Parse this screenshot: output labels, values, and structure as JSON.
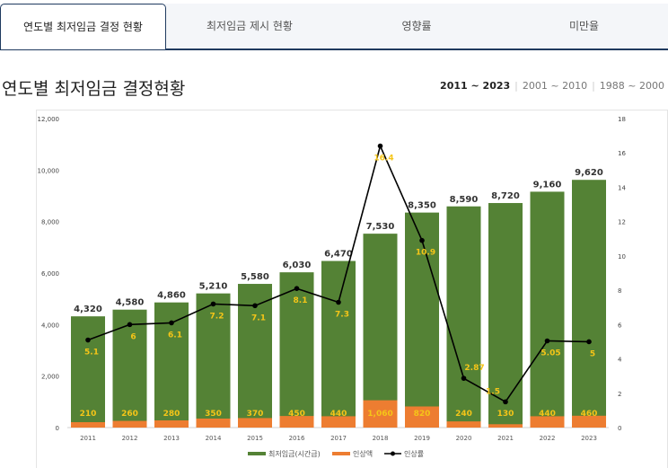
{
  "tabs": [
    {
      "label": "연도별 최저임금 결정 현황",
      "active": true
    },
    {
      "label": "최저임금 제시 현황"
    },
    {
      "label": "영향률"
    },
    {
      "label": "미만율"
    }
  ],
  "title": "연도별 최저임금 결정현황",
  "ranges": [
    {
      "label": "2011 ~ 2023",
      "selected": true
    },
    {
      "label": "2001 ~ 2010"
    },
    {
      "label": "1988 ~ 2000"
    }
  ],
  "chart_data": {
    "type": "bar",
    "categories": [
      "2011",
      "2012",
      "2013",
      "2014",
      "2015",
      "2016",
      "2017",
      "2018",
      "2019",
      "2020",
      "2021",
      "2022",
      "2023"
    ],
    "series": [
      {
        "name": "최저임금(시간급)",
        "type": "bar",
        "axis": "left",
        "color": "#548235",
        "values": [
          4320,
          4580,
          4860,
          5210,
          5580,
          6030,
          6470,
          7530,
          8350,
          8590,
          8720,
          9160,
          9620
        ]
      },
      {
        "name": "인상액",
        "type": "bar",
        "axis": "left",
        "color": "#ed7d31",
        "values": [
          210,
          260,
          280,
          350,
          370,
          450,
          440,
          1060,
          820,
          240,
          130,
          440,
          460
        ]
      },
      {
        "name": "인상률",
        "type": "line",
        "axis": "right",
        "color": "#000000",
        "values": [
          5.1,
          6,
          6.1,
          7.2,
          7.1,
          8.1,
          7.3,
          16.4,
          10.9,
          2.87,
          1.5,
          5.05,
          5
        ]
      }
    ],
    "ylim": [
      0,
      12000
    ],
    "yticks": [
      "0",
      "2,000",
      "4,000",
      "6,000",
      "8,000",
      "10,000",
      "12,000"
    ],
    "y2lim": [
      0,
      18
    ],
    "y2ticks": [
      "0",
      "2",
      "4",
      "6",
      "8",
      "10",
      "12",
      "14",
      "16",
      "18"
    ],
    "legend": "bottom",
    "label_color": "#f5c518"
  }
}
